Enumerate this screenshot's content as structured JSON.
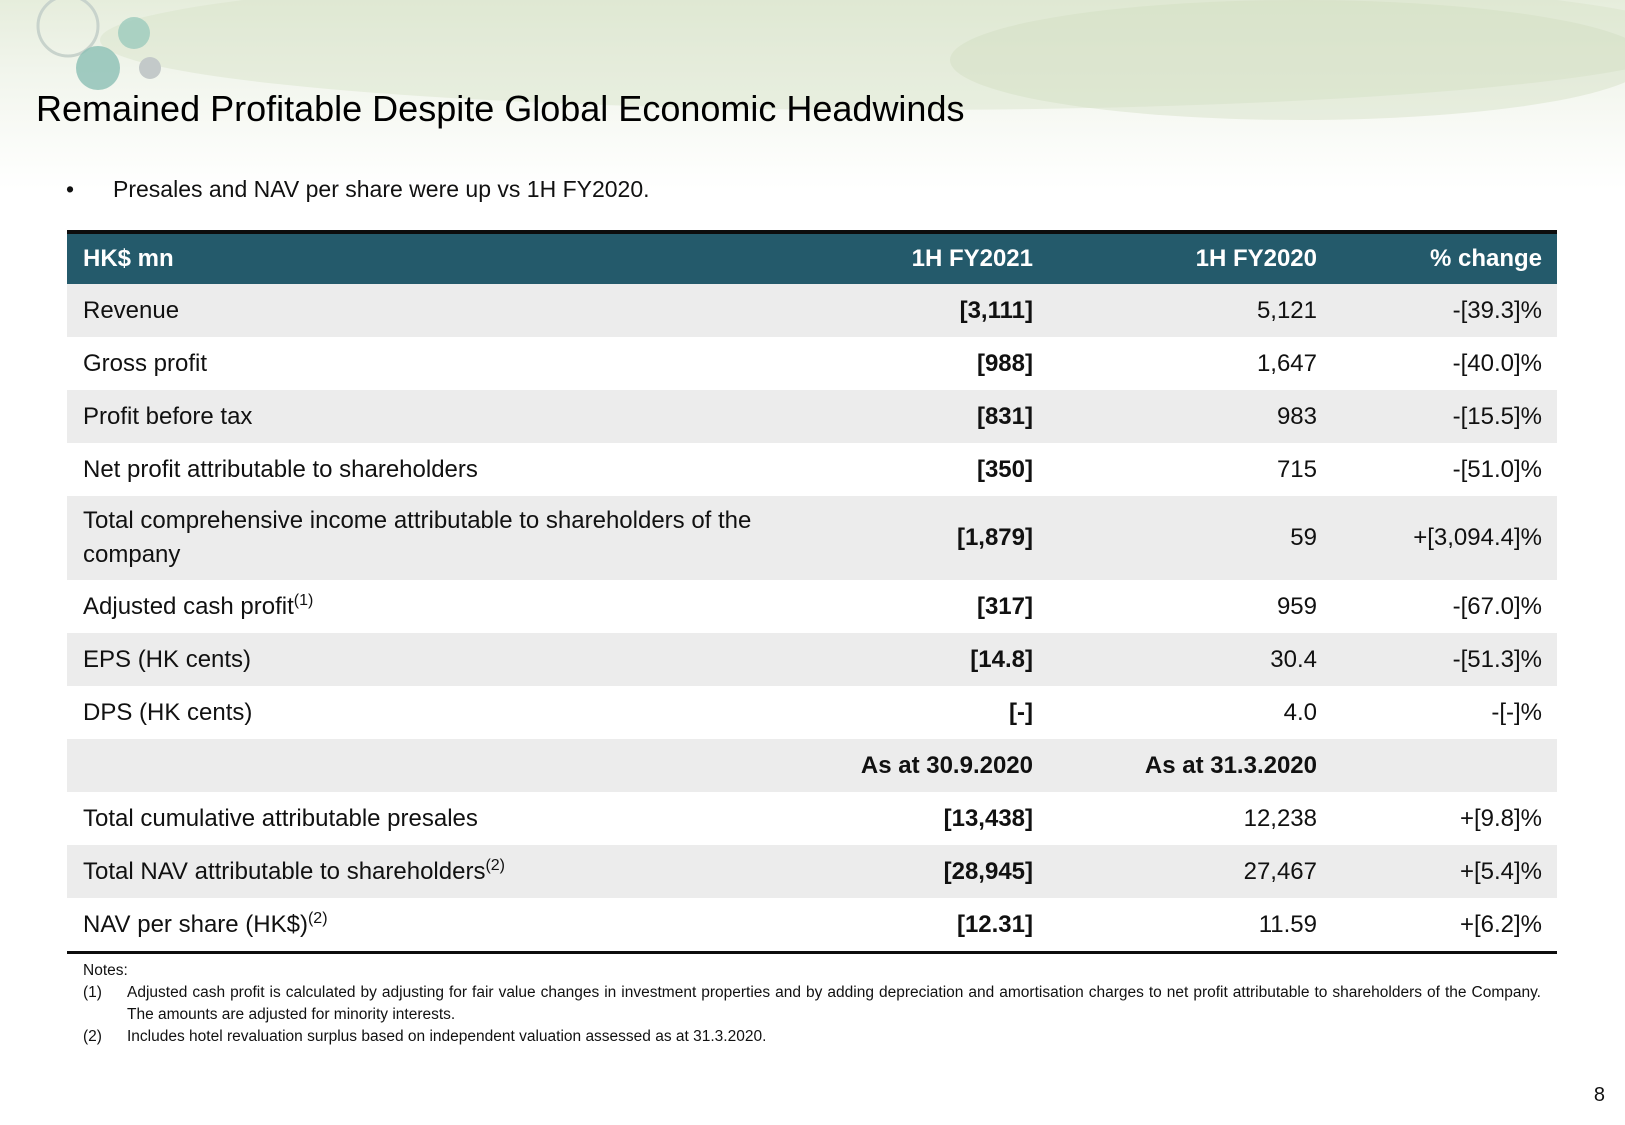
{
  "title": "Remained Profitable Despite Global Economic Headwinds",
  "bullet": "Presales and NAV per share were up vs 1H FY2020.",
  "table": {
    "header": [
      "HK$ mn",
      "1H FY2021",
      "1H FY2020",
      "% change"
    ],
    "rows": [
      {
        "label": "Revenue",
        "values": [
          "[3,111]",
          "5,121",
          "-[39.3]%"
        ]
      },
      {
        "label": "Gross profit",
        "values": [
          "[988]",
          "1,647",
          "-[40.0]%"
        ]
      },
      {
        "label": "Profit before tax",
        "values": [
          "[831]",
          "983",
          "-[15.5]%"
        ]
      },
      {
        "label": "Net profit attributable to shareholders",
        "values": [
          "[350]",
          "715",
          "-[51.0]%"
        ]
      },
      {
        "label": "Total comprehensive income attributable to shareholders of the company",
        "values": [
          "[1,879]",
          "59",
          "+[3,094.4]%"
        ]
      },
      {
        "label": "Adjusted cash profit",
        "note": "(1)",
        "values": [
          "[317]",
          "959",
          "-[67.0]%"
        ]
      },
      {
        "label": "EPS (HK cents)",
        "values": [
          "[14.8]",
          "30.4",
          "-[51.3]%"
        ]
      },
      {
        "label": "DPS (HK cents)",
        "values": [
          "[-]",
          "4.0",
          "-[-]%"
        ]
      }
    ],
    "subheader": [
      "As at 30.9.2020",
      "As at 31.3.2020"
    ],
    "rows2": [
      {
        "label": "Total cumulative attributable presales",
        "values": [
          "[13,438]",
          "12,238",
          "+[9.8]%"
        ]
      },
      {
        "label": "Total NAV attributable to shareholders",
        "note": "(2)",
        "values": [
          "[28,945]",
          "27,467",
          "+[5.4]%"
        ]
      },
      {
        "label": "NAV per share (HK$)",
        "note": "(2)",
        "values": [
          "[12.31]",
          "11.59",
          "+[6.2]%"
        ]
      }
    ]
  },
  "notes": {
    "heading": "Notes:",
    "items": [
      {
        "marker": "(1)",
        "text": "Adjusted cash profit is calculated by adjusting for fair value changes in investment properties and by adding depreciation and amortisation charges to net profit attributable to shareholders of the Company. The amounts are adjusted for minority interests."
      },
      {
        "marker": "(2)",
        "text": "Includes hotel revaluation surplus based on independent valuation assessed as at 31.3.2020."
      }
    ]
  },
  "page_number": "8"
}
